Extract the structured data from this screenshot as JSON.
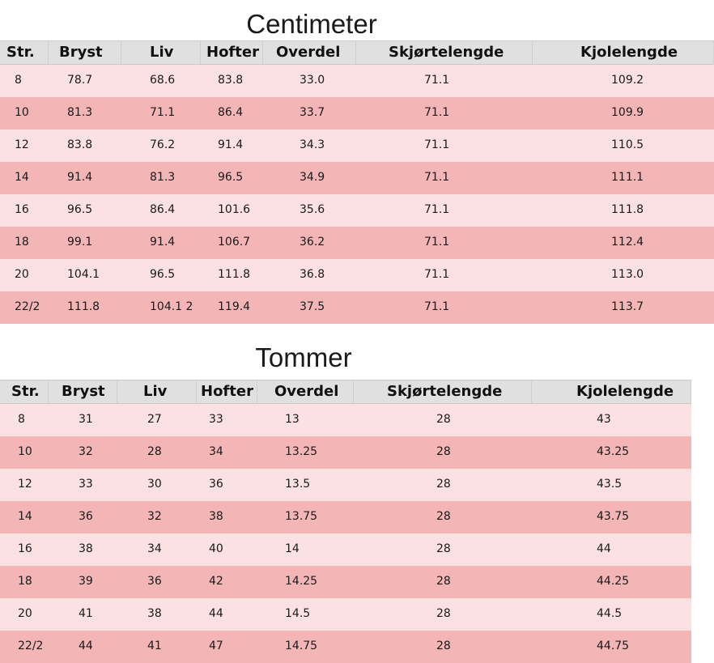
{
  "tables": [
    {
      "title": "Centimeter",
      "headers": [
        "Str.",
        "Bryst",
        "Liv",
        "Hofter",
        "Overdel",
        "Skjørtelengde",
        "Kjolelengde"
      ],
      "rows": [
        [
          "8",
          "78.7",
          "68.6",
          "83.8",
          "33.0",
          "71.1",
          "109.2"
        ],
        [
          "10",
          "81.3",
          "71.1",
          "86.4",
          "33.7",
          "71.1",
          "109.9"
        ],
        [
          "12",
          "83.8",
          "76.2",
          "91.4",
          "34.3",
          "71.1",
          "110.5"
        ],
        [
          "14",
          "91.4",
          "81.3",
          "96.5",
          "34.9",
          "71.1",
          "111.1"
        ],
        [
          "16",
          "96.5",
          "86.4",
          "101.6",
          "35.6",
          "71.1",
          "111.8"
        ],
        [
          "18",
          "99.1",
          "91.4",
          "106.7",
          "36.2",
          "71.1",
          "112.4"
        ],
        [
          "20",
          "104.1",
          "96.5",
          "111.8",
          "36.8",
          "71.1",
          "113.0"
        ],
        [
          "22/2",
          "111.8",
          "104.1 2",
          "119.4",
          "37.5",
          "71.1",
          "113.7"
        ]
      ]
    },
    {
      "title": "Tommer",
      "headers": [
        "Str.",
        "Bryst",
        "Liv",
        "Hofter",
        "Overdel",
        "Skjørtelengde",
        "Kjolelengde"
      ],
      "rows": [
        [
          "8",
          "31",
          "27",
          "33",
          "13",
          "28",
          "43"
        ],
        [
          "10",
          "32",
          "28",
          "34",
          "13.25",
          "28",
          "43.25"
        ],
        [
          "12",
          "33",
          "30",
          "36",
          "13.5",
          "28",
          "43.5"
        ],
        [
          "14",
          "36",
          "32",
          "38",
          "13.75",
          "28",
          "43.75"
        ],
        [
          "16",
          "38",
          "34",
          "40",
          "14",
          "28",
          "44"
        ],
        [
          "18",
          "39",
          "36",
          "42",
          "14.25",
          "28",
          "44.25"
        ],
        [
          "20",
          "41",
          "38",
          "44",
          "14.5",
          "28",
          "44.5"
        ],
        [
          "22/2",
          "44",
          "41",
          "47",
          "14.75",
          "28",
          "44.75"
        ]
      ]
    }
  ]
}
